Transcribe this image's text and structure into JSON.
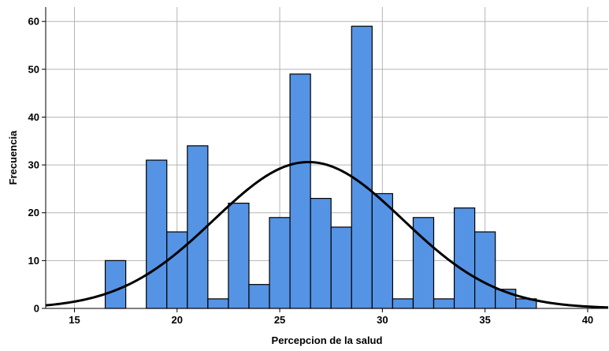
{
  "chart_data": {
    "type": "bar",
    "xlabel": "Percepcion de la salud",
    "ylabel": "Frecuencia",
    "xlim": [
      13.6,
      41.0
    ],
    "ylim": [
      0,
      63
    ],
    "x_ticks": [
      15,
      20,
      25,
      30,
      35,
      40
    ],
    "y_ticks": [
      0,
      10,
      20,
      30,
      40,
      50,
      60
    ],
    "grid": true,
    "bar_color": "#5593e4",
    "curve_color": "#000000",
    "bin_width": 1,
    "bins": [
      {
        "x": 17,
        "value": 10
      },
      {
        "x": 19,
        "value": 31
      },
      {
        "x": 20,
        "value": 16
      },
      {
        "x": 21,
        "value": 34
      },
      {
        "x": 22,
        "value": 2
      },
      {
        "x": 23,
        "value": 22
      },
      {
        "x": 24,
        "value": 5
      },
      {
        "x": 25,
        "value": 19
      },
      {
        "x": 26,
        "value": 49
      },
      {
        "x": 27,
        "value": 23
      },
      {
        "x": 28,
        "value": 17
      },
      {
        "x": 29,
        "value": 59
      },
      {
        "x": 30,
        "value": 24
      },
      {
        "x": 31,
        "value": 2
      },
      {
        "x": 32,
        "value": 19
      },
      {
        "x": 33,
        "value": 2
      },
      {
        "x": 34,
        "value": 21
      },
      {
        "x": 35,
        "value": 16
      },
      {
        "x": 36,
        "value": 4
      },
      {
        "x": 37,
        "value": 2
      }
    ],
    "normal_curve": {
      "mean": 26.4,
      "sd": 4.6,
      "peak": 30.6
    }
  }
}
